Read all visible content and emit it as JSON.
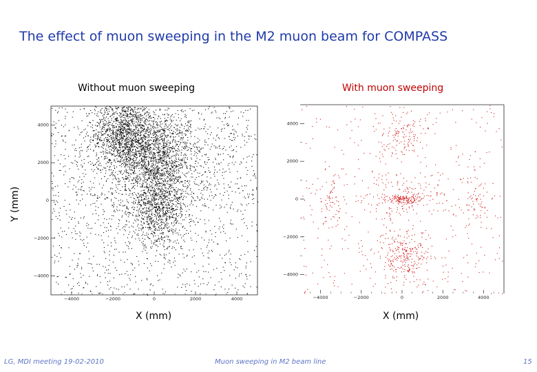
{
  "slide": {
    "title": "The effect of muon sweeping in the M2 muon beam for COMPASS",
    "footer_left": "LG, MDI meeting 19-02-2010",
    "footer_center": "Muon sweeping in M2 beam line",
    "page_number": "15"
  },
  "chart_data": [
    {
      "type": "scatter",
      "title": "Without muon sweeping",
      "xlabel": "X (mm)",
      "ylabel": "Y (mm)",
      "xlim": [
        -5000,
        5000
      ],
      "ylim": [
        -5000,
        5000
      ],
      "x_ticks": [
        -4000,
        -2000,
        0,
        2000,
        4000
      ],
      "x_tick_labels": [
        "−4000",
        "−2000",
        "0",
        "2000",
        "4000"
      ],
      "y_ticks": [
        4000,
        2000,
        0,
        -2000,
        -4000
      ],
      "y_tick_labels": [
        "4000",
        "2000",
        "0",
        "−2000",
        "−4000"
      ],
      "marker_color": "#000000",
      "clusters": [
        {
          "cx": -1500,
          "cy": 3600,
          "sx": 700,
          "sy": 900,
          "n": 1100
        },
        {
          "cx": 0,
          "cy": 2400,
          "sx": 900,
          "sy": 1200,
          "n": 1300
        },
        {
          "cx": 200,
          "cy": -400,
          "sx": 700,
          "sy": 1000,
          "n": 900
        },
        {
          "cx": 0,
          "cy": 2000,
          "sx": 2500,
          "sy": 2000,
          "n": 1000
        }
      ],
      "background_points": 1100
    },
    {
      "type": "scatter",
      "title": "With muon sweeping",
      "xlabel": "X (mm)",
      "ylabel": "",
      "xlim": [
        -5000,
        5000
      ],
      "ylim": [
        -5000,
        5000
      ],
      "x_ticks": [
        -4000,
        -2000,
        0,
        2000,
        4000
      ],
      "x_tick_labels": [
        "−4000",
        "−2000",
        "0",
        "2000",
        "4000"
      ],
      "y_ticks": [
        4000,
        2000,
        0,
        -2000,
        -4000
      ],
      "y_tick_labels": [
        "4000",
        "2000",
        "0",
        "−2000",
        "−4000"
      ],
      "marker_color": "#d01010",
      "clusters": [
        {
          "cx": 0,
          "cy": 0,
          "sx": 350,
          "sy": 120,
          "n": 120
        },
        {
          "cx": 0,
          "cy": 0,
          "sx": 1100,
          "sy": 600,
          "n": 160
        },
        {
          "cx": 0,
          "cy": -3000,
          "sx": 700,
          "sy": 700,
          "n": 260
        },
        {
          "cx": 0,
          "cy": 3400,
          "sx": 700,
          "sy": 700,
          "n": 130
        },
        {
          "cx": -3600,
          "cy": 0,
          "sx": 350,
          "sy": 700,
          "n": 60
        },
        {
          "cx": 3600,
          "cy": 0,
          "sx": 350,
          "sy": 700,
          "n": 60
        }
      ],
      "background_points": 380
    }
  ]
}
